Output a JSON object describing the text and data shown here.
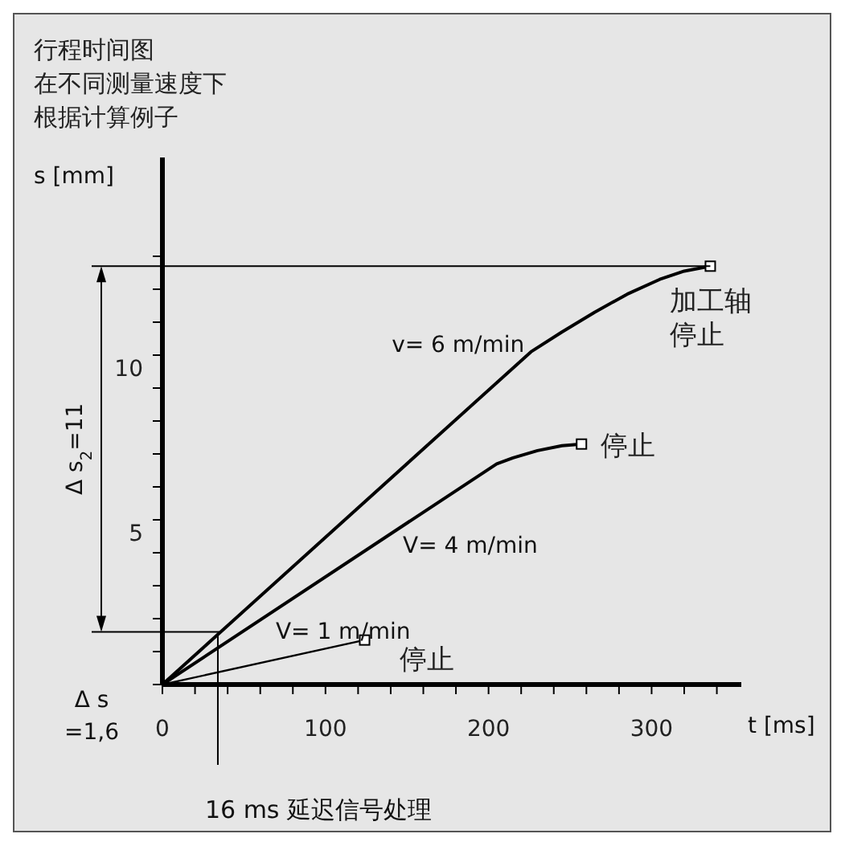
{
  "chart_data": {
    "type": "line",
    "title": "行程时间图",
    "subtitle": "在不同测量速度下根据计算例子",
    "xlabel": "t [ms]",
    "ylabel": "s [mm]",
    "series": [
      {
        "name": "v= 6 m/min",
        "color": "#000000",
        "x": [
          0,
          226,
          245,
          265,
          285,
          305,
          320,
          336
        ],
        "values": [
          0,
          10.1,
          10.7,
          11.3,
          11.85,
          12.3,
          12.55,
          12.7
        ]
      },
      {
        "name": "V= 4 m/min",
        "color": "#000000",
        "x": [
          0,
          205,
          215,
          230,
          245,
          257
        ],
        "values": [
          0,
          6.7,
          6.88,
          7.1,
          7.25,
          7.3
        ]
      },
      {
        "name": "V= 1 m/min",
        "color": "#000000",
        "x": [
          0,
          124
        ],
        "values": [
          0,
          1.35
        ]
      }
    ],
    "xlim": [
      0,
      355
    ],
    "ylim": [
      0,
      16
    ],
    "xticks": [
      {
        "value": 0,
        "label": "0"
      },
      {
        "value": 20,
        "label": null
      },
      {
        "value": 40,
        "label": null
      },
      {
        "value": 60,
        "label": null
      },
      {
        "value": 80,
        "label": null
      },
      100,
      {
        "value": 120,
        "label": null
      },
      {
        "value": 140,
        "label": null
      },
      {
        "value": 160,
        "label": null
      },
      {
        "value": 180,
        "label": null
      },
      200,
      {
        "value": 220,
        "label": null
      },
      {
        "value": 240,
        "label": null
      },
      {
        "value": 260,
        "label": null
      },
      {
        "value": 280,
        "label": null
      },
      300,
      {
        "value": 320,
        "label": null
      },
      {
        "value": 340,
        "label": null
      }
    ],
    "yticks": [
      {
        "value": 0,
        "label": null
      },
      {
        "value": 1,
        "label": null
      },
      {
        "value": 2,
        "label": null
      },
      {
        "value": 3,
        "label": null
      },
      {
        "value": 4,
        "label": null
      },
      5,
      {
        "value": 6,
        "label": null
      },
      {
        "value": 7,
        "label": null
      },
      {
        "value": 8,
        "label": null
      },
      {
        "value": 9,
        "label": null
      },
      10,
      {
        "value": 11,
        "label": null
      },
      {
        "value": 12,
        "label": null
      },
      {
        "value": 13,
        "label": null
      }
    ],
    "ref_lines": [
      {
        "axis": "y",
        "value": 12.7,
        "color": "#000000"
      },
      {
        "axis": "y",
        "value": 1.6,
        "label": "Δ s =1,6",
        "color": "#000000"
      },
      {
        "axis": "x",
        "value": 34,
        "label": "16 ms 延迟信号处理",
        "color": "#000000"
      }
    ],
    "annotations": [
      "Δ s$_{2}$=11",
      {
        "text": "加工轴停止",
        "x": 336,
        "y": 12.7
      },
      {
        "text": "停止",
        "x": 257,
        "y": 7.3
      },
      {
        "text": "停止",
        "x": 124,
        "y": 1.35
      }
    ],
    "line_style": "solid",
    "grid": false
  }
}
